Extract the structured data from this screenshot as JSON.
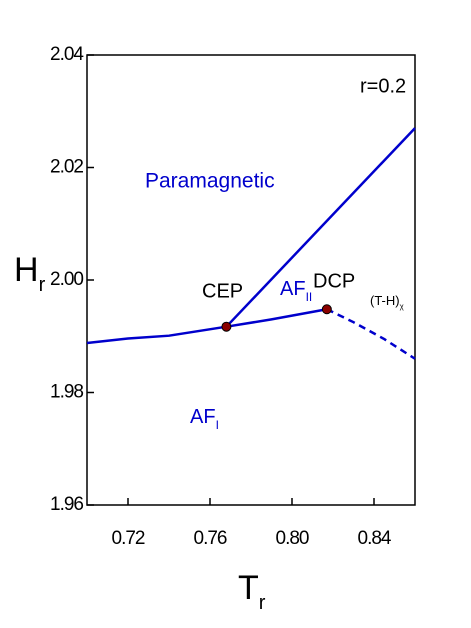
{
  "chart_data": {
    "type": "line",
    "xlabel": {
      "text": "T",
      "sub": "r"
    },
    "ylabel": {
      "text": "H",
      "sub": "r"
    },
    "xlim": [
      0.7,
      0.86
    ],
    "ylim": [
      1.96,
      2.04
    ],
    "xticks": [
      0.72,
      0.76,
      {
        "value": 0.8,
        "label": "0.80"
      },
      0.84
    ],
    "yticks": [
      1.96,
      1.98,
      {
        "value": 2,
        "label": "2.00"
      },
      2.02,
      2.04
    ],
    "series": [
      {
        "color": "#0000cc",
        "style": "solid",
        "x": [
          0.7,
          0.72,
          0.74,
          0.768,
          0.79,
          0.817
        ],
        "values": [
          1.9888,
          1.9896,
          1.9901,
          1.9917,
          1.993,
          1.9948
        ]
      },
      {
        "color": "#0000cc",
        "style": "solid",
        "x": [
          0.768,
          0.86
        ],
        "values": [
          1.9917,
          2.027
        ]
      },
      {
        "color": "#0000cc",
        "style": "dashed",
        "x": [
          0.817,
          0.83,
          0.845,
          0.86
        ],
        "values": [
          1.9948,
          1.9925,
          1.9895,
          1.986
        ]
      }
    ],
    "points": {
      "color": "#8b0000",
      "x": [
        0.768,
        0.817
      ],
      "values": [
        1.9917,
        1.9948
      ]
    },
    "annotations": [
      {
        "text": "r=0.2"
      },
      {
        "text": "Paramagnetic"
      },
      {
        "text": "CEP"
      },
      {
        "text": "DCP"
      },
      {
        "text": "AF",
        "sub": "II"
      },
      {
        "text": "(T-H)",
        "sub": "χ"
      },
      {
        "text": "AF",
        "sub": "I"
      }
    ]
  }
}
